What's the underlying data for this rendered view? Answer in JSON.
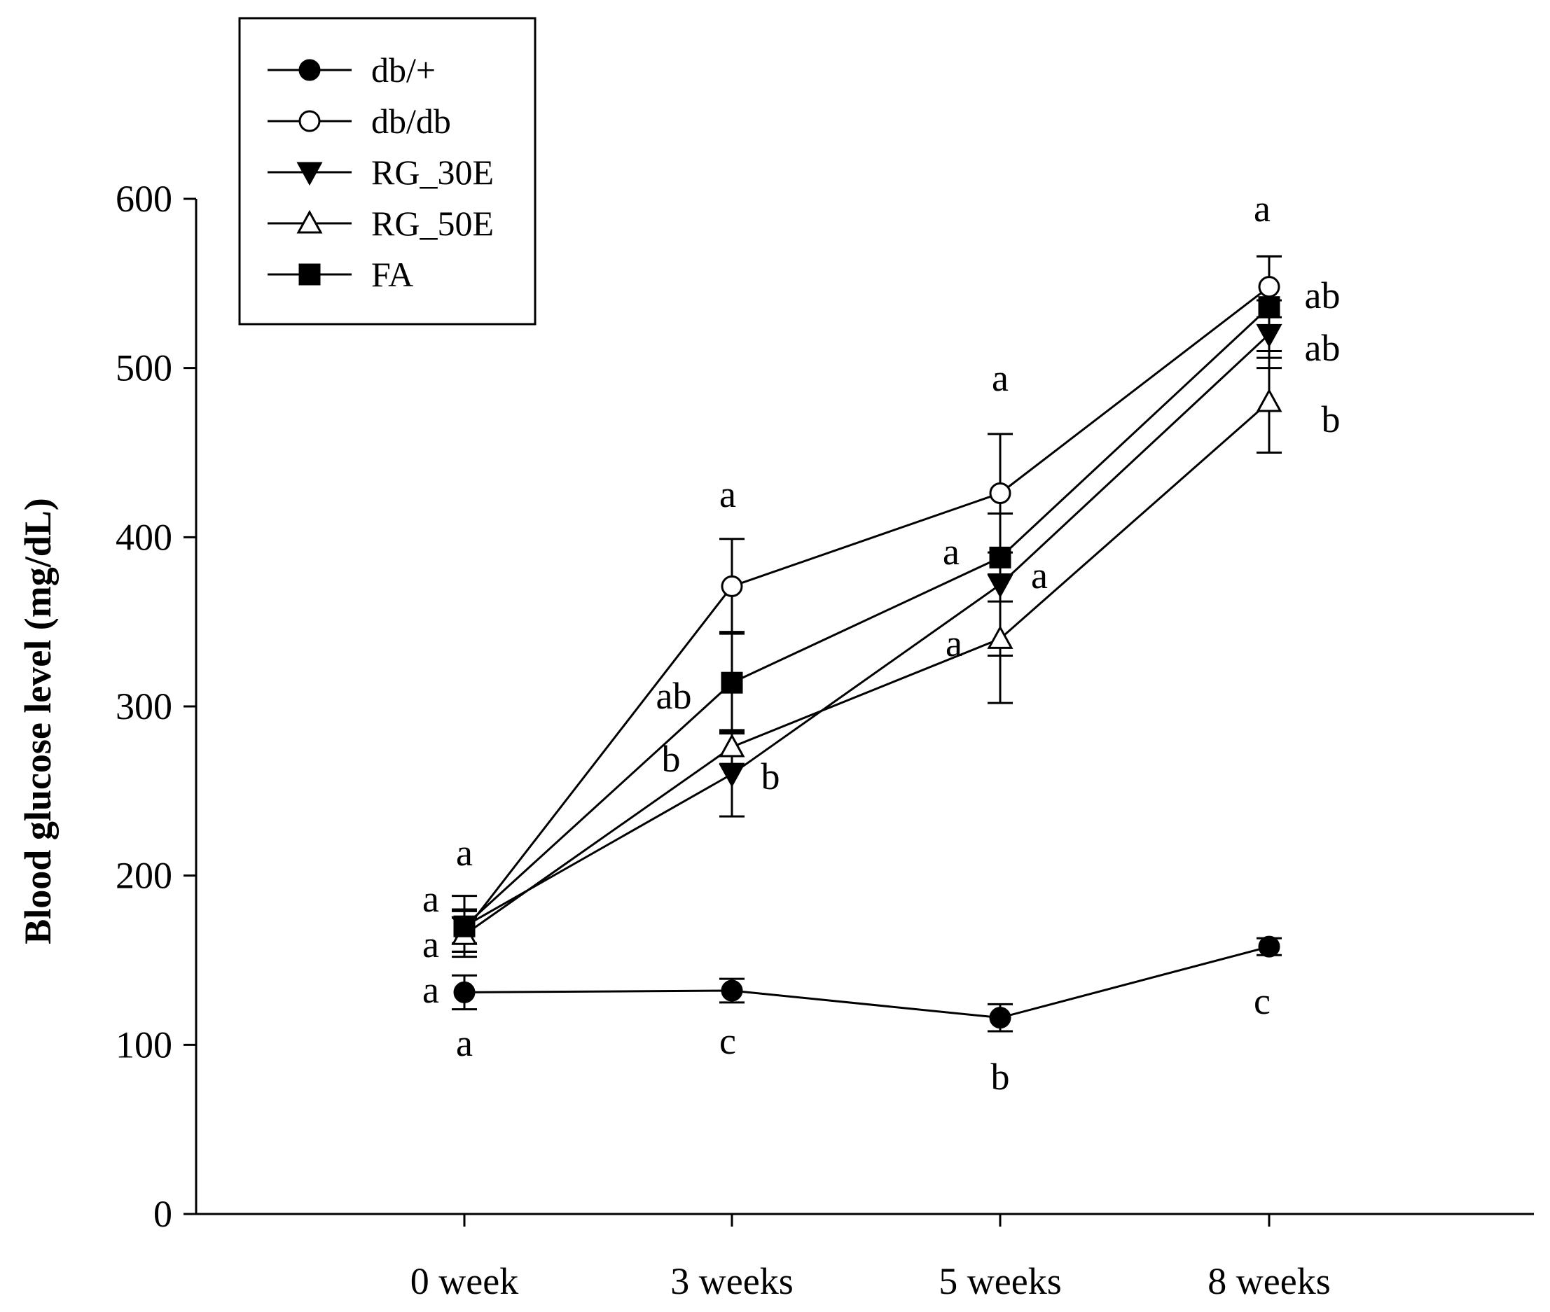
{
  "chart_data": {
    "type": "line",
    "title": "",
    "xlabel": "",
    "ylabel": "Blood glucose level (mg/dL)",
    "categories": [
      "0 week",
      "3 weeks",
      "5 weeks",
      "8 weeks"
    ],
    "ylim": [
      0,
      600
    ],
    "yticks": [
      0,
      100,
      200,
      300,
      400,
      500,
      600
    ],
    "grid": false,
    "legend_position": "top-left",
    "series": [
      {
        "name": "db/+",
        "marker": "circle-filled",
        "values": [
          131,
          132,
          116,
          158
        ],
        "errors": [
          10,
          7,
          8,
          5
        ],
        "labels": [
          "a",
          "c",
          "b",
          "c"
        ]
      },
      {
        "name": "db/db",
        "marker": "circle-open",
        "values": [
          167,
          371,
          426,
          548
        ],
        "errors": [
          12,
          28,
          35,
          18
        ],
        "labels": [
          "a",
          "a",
          "a",
          "a"
        ]
      },
      {
        "name": "RG_30E",
        "marker": "triangle-down-filled",
        "values": [
          170,
          260,
          372,
          520
        ],
        "errors": [
          10,
          25,
          42,
          20
        ],
        "labels": [
          "a",
          "b",
          "a",
          "ab"
        ]
      },
      {
        "name": "RG_50E",
        "marker": "triangle-up-open",
        "values": [
          165,
          276,
          340,
          480
        ],
        "errors": [
          10,
          10,
          38,
          30
        ],
        "labels": [
          "a",
          "b",
          "a",
          "b"
        ]
      },
      {
        "name": "FA",
        "marker": "square-filled",
        "values": [
          170,
          314,
          388,
          536
        ],
        "errors": [
          18,
          30,
          26,
          30
        ],
        "labels": [
          "a",
          "ab",
          "a",
          "ab"
        ]
      }
    ]
  }
}
